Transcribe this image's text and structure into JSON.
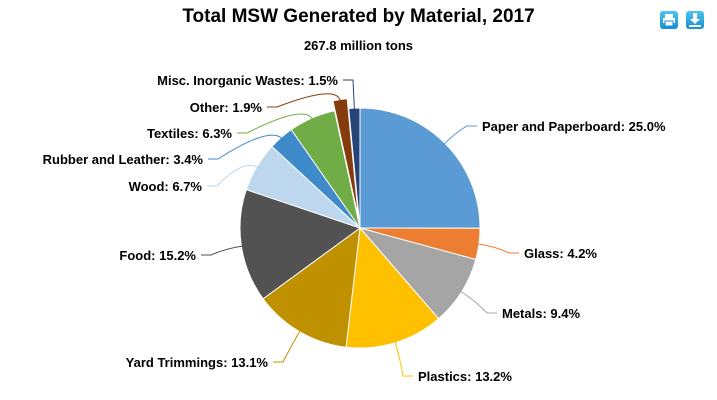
{
  "chart_data": {
    "type": "pie",
    "title": "Total MSW Generated by Material, 2017",
    "subtitle": "267.8 million tons",
    "slices": [
      {
        "name": "Paper and Paperboard",
        "value": 25.0,
        "color": "#5b9bd5"
      },
      {
        "name": "Glass",
        "value": 4.2,
        "color": "#ed7d31"
      },
      {
        "name": "Metals",
        "value": 9.4,
        "color": "#a5a5a5"
      },
      {
        "name": "Plastics",
        "value": 13.2,
        "color": "#ffc000"
      },
      {
        "name": "Yard Trimmings",
        "value": 13.1,
        "color": "#bf9000"
      },
      {
        "name": "Food",
        "value": 15.2,
        "color": "#525252"
      },
      {
        "name": "Wood",
        "value": 6.7,
        "color": "#bdd7ee"
      },
      {
        "name": "Rubber and Leather",
        "value": 3.4,
        "color": "#3f8ac8"
      },
      {
        "name": "Textiles",
        "value": 6.3,
        "color": "#70ad47"
      },
      {
        "name": "Other",
        "value": 1.9,
        "color": "#843c0c",
        "sliced": true
      },
      {
        "name": "Misc. Inorganic Wastes",
        "value": 1.5,
        "color": "#264478"
      }
    ],
    "unit": "%"
  },
  "toolbar": {
    "print_icon": "print-icon",
    "download_icon": "download-icon"
  }
}
